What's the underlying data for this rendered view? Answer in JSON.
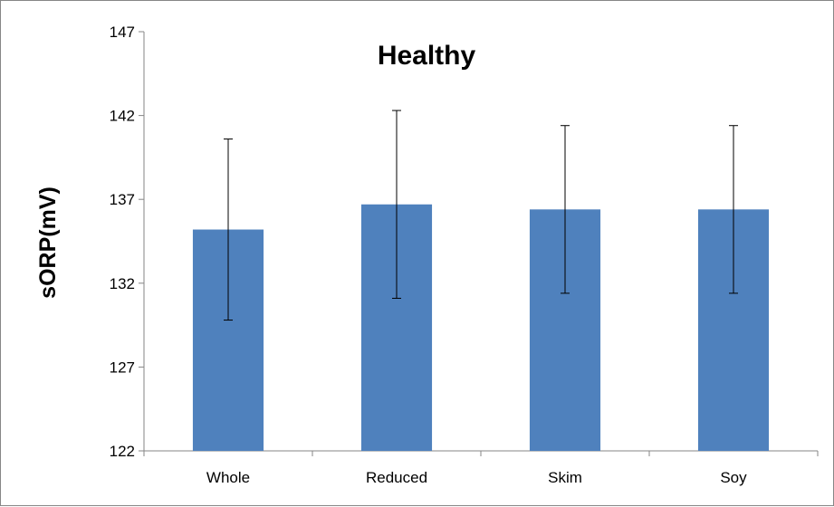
{
  "chart_data": {
    "type": "bar",
    "title": "Healthy",
    "xlabel": "",
    "ylabel": "sORP(mV)",
    "categories": [
      "Whole",
      "Reduced",
      "Skim",
      "Soy"
    ],
    "values": [
      135.2,
      136.7,
      136.4,
      136.4
    ],
    "error": [
      5.4,
      5.6,
      5.0,
      5.0
    ],
    "ylim": [
      122,
      147
    ],
    "yticks": [
      122,
      127,
      132,
      137,
      142,
      147
    ],
    "grid": false,
    "legend": "none",
    "bar_color": "#4f81bd",
    "error_color": "#000000"
  }
}
